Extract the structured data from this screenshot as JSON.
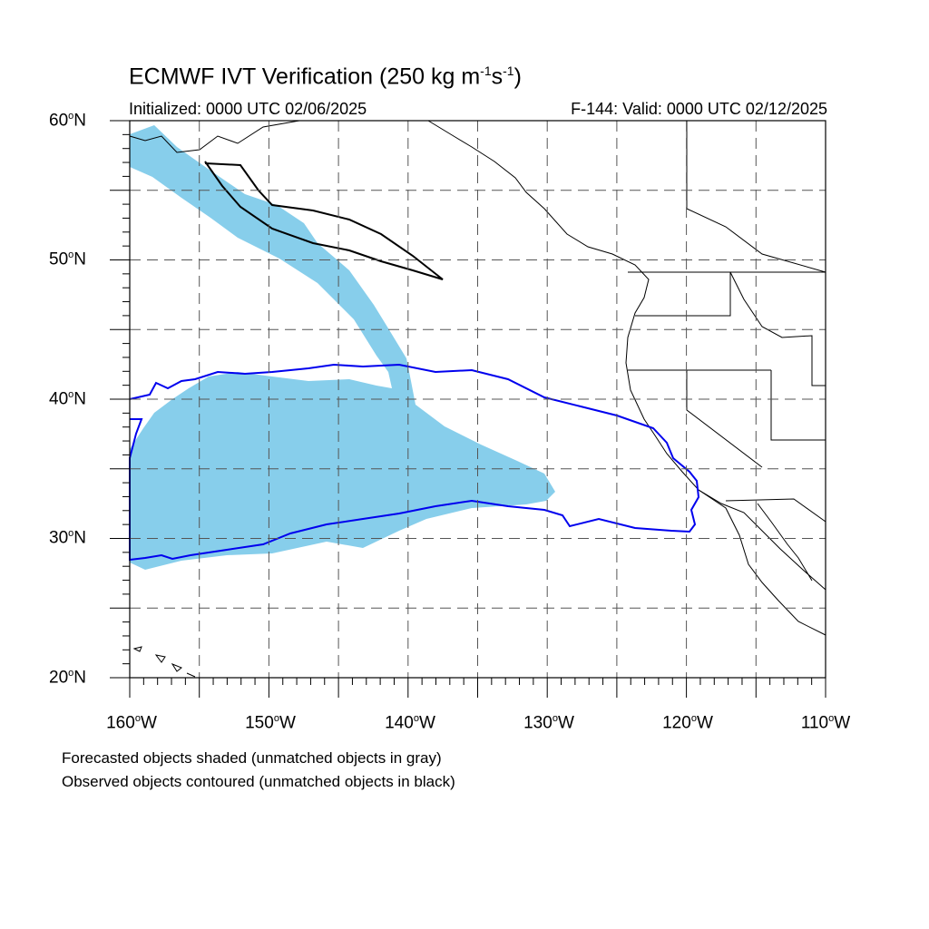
{
  "title": {
    "main": "ECMWF IVT Verification (250 kg m",
    "exp1": "-1",
    "mid": "s",
    "exp2": "-1",
    "close": ")"
  },
  "subtitle_left": "Initialized: 0000 UTC 02/06/2025",
  "subtitle_right": "F-144: Valid: 0000 UTC 02/12/2025",
  "lat_labels": [
    {
      "num": "60",
      "deg": "o",
      "hem": "N"
    },
    {
      "num": "50",
      "deg": "o",
      "hem": "N"
    },
    {
      "num": "40",
      "deg": "o",
      "hem": "N"
    },
    {
      "num": "30",
      "deg": "o",
      "hem": "N"
    },
    {
      "num": "20",
      "deg": "o",
      "hem": "N"
    }
  ],
  "lon_labels": [
    {
      "num": "160",
      "deg": "o",
      "hem": "W"
    },
    {
      "num": "150",
      "deg": "o",
      "hem": "W"
    },
    {
      "num": "140",
      "deg": "o",
      "hem": "W"
    },
    {
      "num": "130",
      "deg": "o",
      "hem": "W"
    },
    {
      "num": "120",
      "deg": "o",
      "hem": "W"
    },
    {
      "num": "110",
      "deg": "o",
      "hem": "W"
    }
  ],
  "notes": {
    "line1": "Forecasted objects shaded (unmatched objects in gray)",
    "line2": "Observed objects contoured (unmatched objects in black)"
  },
  "colors": {
    "forecast_fill": "#87ceeb",
    "observed_matched": "#0000ee",
    "observed_unmatched": "#000000",
    "coast": "#000000",
    "grid": "#555555"
  }
}
